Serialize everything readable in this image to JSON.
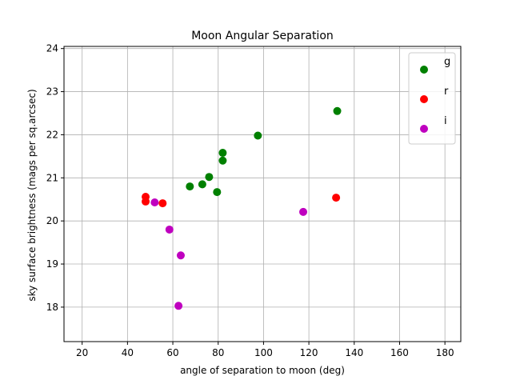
{
  "chart_data": {
    "type": "scatter",
    "title": "Moon Angular Separation",
    "xlabel": "angle of separation to moon (deg)",
    "ylabel": "sky surface brightness (mags per sq.arcsec)",
    "xlim": [
      12,
      187
    ],
    "ylim": [
      17.2,
      24.05
    ],
    "xticks": [
      20,
      40,
      60,
      80,
      100,
      120,
      140,
      160,
      180
    ],
    "yticks": [
      18,
      19,
      20,
      21,
      22,
      23,
      24
    ],
    "grid": true,
    "legend_position": "top-right",
    "series": [
      {
        "name": "g",
        "color": "#008000",
        "points": [
          {
            "x": 67.5,
            "y": 20.8
          },
          {
            "x": 73.0,
            "y": 20.85
          },
          {
            "x": 76.0,
            "y": 21.02
          },
          {
            "x": 79.5,
            "y": 20.67
          },
          {
            "x": 82.0,
            "y": 21.58
          },
          {
            "x": 82.0,
            "y": 21.4
          },
          {
            "x": 97.5,
            "y": 21.98
          },
          {
            "x": 132.5,
            "y": 22.55
          }
        ]
      },
      {
        "name": "r",
        "color": "#ff0000",
        "points": [
          {
            "x": 48.0,
            "y": 20.56
          },
          {
            "x": 48.0,
            "y": 20.45
          },
          {
            "x": 55.5,
            "y": 20.41
          },
          {
            "x": 132.0,
            "y": 20.54
          }
        ]
      },
      {
        "name": "i",
        "color": "#bf00bf",
        "points": [
          {
            "x": 52.0,
            "y": 20.43
          },
          {
            "x": 58.5,
            "y": 19.8
          },
          {
            "x": 63.5,
            "y": 19.2
          },
          {
            "x": 62.5,
            "y": 18.03
          },
          {
            "x": 117.5,
            "y": 20.21
          }
        ]
      }
    ]
  }
}
